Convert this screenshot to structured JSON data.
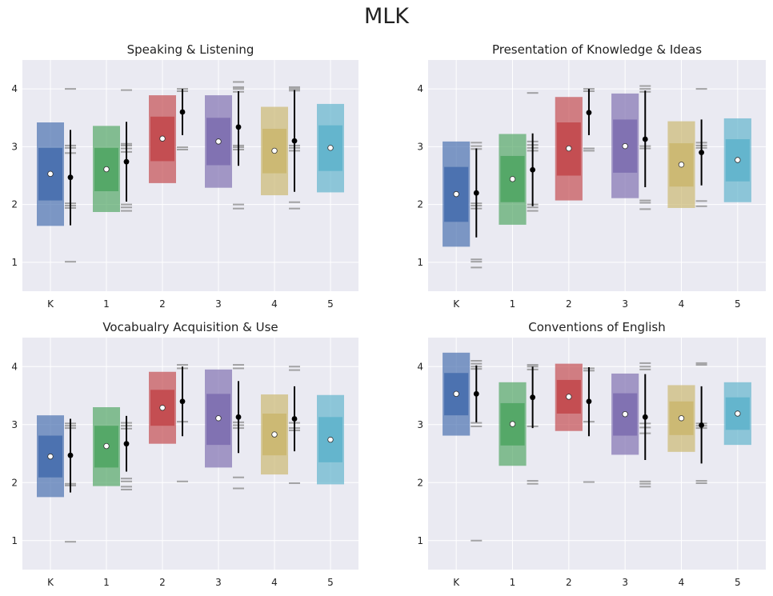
{
  "figure": {
    "title": "MLK"
  },
  "colors": {
    "panel_bg": "#EAEAF2",
    "grid": "#FFFFFF",
    "series": [
      "#4C72B0",
      "#55A868",
      "#C44E52",
      "#8172B2",
      "#CCB974",
      "#64B5CD"
    ]
  },
  "chart_data": [
    {
      "type": "box",
      "title": "Speaking & Listening",
      "xlabel": "",
      "ylabel": "",
      "categories": [
        "K",
        "1",
        "2",
        "3",
        "4",
        "5"
      ],
      "ylim": [
        0.5,
        4.5
      ],
      "yticks": [
        1,
        2,
        3,
        4
      ],
      "grid": true,
      "boxes": [
        {
          "whisker_low": 1.63,
          "q1": 2.07,
          "mean": 2.53,
          "q3": 2.98,
          "whisker_high": 3.42
        },
        {
          "whisker_low": 1.87,
          "q1": 2.23,
          "mean": 2.61,
          "q3": 2.98,
          "whisker_high": 3.36
        },
        {
          "whisker_low": 2.37,
          "q1": 2.75,
          "mean": 3.14,
          "q3": 3.52,
          "whisker_high": 3.89
        },
        {
          "whisker_low": 2.29,
          "q1": 2.68,
          "mean": 3.09,
          "q3": 3.5,
          "whisker_high": 3.89
        },
        {
          "whisker_low": 2.16,
          "q1": 2.54,
          "mean": 2.93,
          "q3": 3.31,
          "whisker_high": 3.69
        },
        {
          "whisker_low": 2.21,
          "q1": 2.58,
          "mean": 2.98,
          "q3": 3.37,
          "whisker_high": 3.74
        }
      ],
      "mlk": [
        {
          "mean": 2.47,
          "low": 1.64,
          "high": 3.29,
          "ticks": [
            1.01,
            1.94,
            1.98,
            2.02,
            2.89,
            2.98,
            3.02,
            4.0
          ]
        },
        {
          "mean": 2.74,
          "low": 2.05,
          "high": 3.43,
          "ticks": [
            1.89,
            1.95,
            2.0,
            2.91,
            2.97,
            3.02,
            3.05,
            3.98
          ]
        },
        {
          "mean": 3.6,
          "low": 3.2,
          "high": 4.0,
          "ticks": [
            2.95,
            2.99,
            3.96,
            4.0
          ]
        },
        {
          "mean": 3.34,
          "low": 2.67,
          "high": 3.96,
          "ticks": [
            1.93,
            2.0,
            2.95,
            2.99,
            3.02,
            3.95,
            4.0,
            4.03,
            4.12
          ]
        },
        {
          "mean": 3.1,
          "low": 2.22,
          "high": 3.98,
          "ticks": [
            1.93,
            2.04,
            2.93,
            2.98,
            3.02,
            3.97,
            4.0,
            4.03
          ]
        },
        {
          "mean": null,
          "low": null,
          "high": null,
          "ticks": []
        }
      ]
    },
    {
      "type": "box",
      "title": "Presentation of Knowledge & Ideas",
      "xlabel": "",
      "ylabel": "",
      "categories": [
        "K",
        "1",
        "2",
        "3",
        "4",
        "5"
      ],
      "ylim": [
        0.5,
        4.5
      ],
      "yticks": [
        1,
        2,
        3,
        4
      ],
      "grid": true,
      "boxes": [
        {
          "whisker_low": 1.27,
          "q1": 1.7,
          "mean": 2.18,
          "q3": 2.65,
          "whisker_high": 3.09
        },
        {
          "whisker_low": 1.65,
          "q1": 2.04,
          "mean": 2.44,
          "q3": 2.84,
          "whisker_high": 3.22
        },
        {
          "whisker_low": 2.07,
          "q1": 2.5,
          "mean": 2.97,
          "q3": 3.42,
          "whisker_high": 3.86
        },
        {
          "whisker_low": 2.11,
          "q1": 2.55,
          "mean": 3.01,
          "q3": 3.47,
          "whisker_high": 3.92
        },
        {
          "whisker_low": 1.94,
          "q1": 2.31,
          "mean": 2.69,
          "q3": 3.06,
          "whisker_high": 3.44
        },
        {
          "whisker_low": 2.04,
          "q1": 2.4,
          "mean": 2.77,
          "q3": 3.13,
          "whisker_high": 3.49
        }
      ],
      "mlk": [
        {
          "mean": 2.2,
          "low": 1.43,
          "high": 2.97,
          "ticks": [
            0.91,
            1.01,
            1.05,
            1.93,
            1.98,
            2.02,
            2.96,
            3.01,
            3.07
          ]
        },
        {
          "mean": 2.6,
          "low": 1.97,
          "high": 3.23,
          "ticks": [
            1.89,
            1.95,
            2.0,
            2.93,
            2.98,
            3.03,
            3.09,
            3.93
          ]
        },
        {
          "mean": 3.59,
          "low": 3.2,
          "high": 4.0,
          "ticks": [
            2.93,
            2.97,
            3.96,
            4.0
          ]
        },
        {
          "mean": 3.13,
          "low": 2.3,
          "high": 3.97,
          "ticks": [
            1.92,
            2.03,
            2.07,
            2.97,
            3.01,
            3.95,
            4.0,
            4.05
          ]
        },
        {
          "mean": 2.9,
          "low": 2.33,
          "high": 3.47,
          "ticks": [
            1.97,
            2.06,
            2.98,
            3.02,
            3.07,
            4.0
          ]
        },
        {
          "mean": null,
          "low": null,
          "high": null,
          "ticks": []
        }
      ]
    },
    {
      "type": "box",
      "title": "Vocabualry Acquisition & Use",
      "xlabel": "",
      "ylabel": "",
      "categories": [
        "K",
        "1",
        "2",
        "3",
        "4",
        "5"
      ],
      "ylim": [
        0.5,
        4.5
      ],
      "yticks": [
        1,
        2,
        3,
        4
      ],
      "grid": true,
      "boxes": [
        {
          "whisker_low": 1.75,
          "q1": 2.09,
          "mean": 2.45,
          "q3": 2.81,
          "whisker_high": 3.16
        },
        {
          "whisker_low": 1.94,
          "q1": 2.26,
          "mean": 2.63,
          "q3": 2.98,
          "whisker_high": 3.3
        },
        {
          "whisker_low": 2.67,
          "q1": 2.98,
          "mean": 3.29,
          "q3": 3.6,
          "whisker_high": 3.91
        },
        {
          "whisker_low": 2.26,
          "q1": 2.65,
          "mean": 3.11,
          "q3": 3.53,
          "whisker_high": 3.95
        },
        {
          "whisker_low": 2.14,
          "q1": 2.47,
          "mean": 2.83,
          "q3": 3.19,
          "whisker_high": 3.52
        },
        {
          "whisker_low": 1.97,
          "q1": 2.35,
          "mean": 2.74,
          "q3": 3.13,
          "whisker_high": 3.51
        }
      ],
      "mlk": [
        {
          "mean": 2.47,
          "low": 1.83,
          "high": 3.1,
          "ticks": [
            0.98,
            1.95,
            1.98,
            2.94,
            2.98,
            3.02
          ]
        },
        {
          "mean": 2.67,
          "low": 2.19,
          "high": 3.15,
          "ticks": [
            1.88,
            1.93,
            2.02,
            2.07,
            2.93,
            2.98,
            3.03
          ]
        },
        {
          "mean": 3.4,
          "low": 2.8,
          "high": 4.0,
          "ticks": [
            2.02,
            3.05,
            3.97,
            4.03
          ]
        },
        {
          "mean": 3.13,
          "low": 2.51,
          "high": 3.75,
          "ticks": [
            1.9,
            2.09,
            2.94,
            2.99,
            3.04,
            3.97,
            4.03
          ]
        },
        {
          "mean": 3.1,
          "low": 2.54,
          "high": 3.66,
          "ticks": [
            1.99,
            2.9,
            2.94,
            3.03,
            3.94,
            4.0
          ]
        },
        {
          "mean": null,
          "low": null,
          "high": null,
          "ticks": []
        }
      ]
    },
    {
      "type": "box",
      "title": "Conventions of English",
      "xlabel": "",
      "ylabel": "",
      "categories": [
        "K",
        "1",
        "2",
        "3",
        "4",
        "5"
      ],
      "ylim": [
        0.5,
        4.5
      ],
      "yticks": [
        1,
        2,
        3,
        4
      ],
      "grid": true,
      "boxes": [
        {
          "whisker_low": 2.81,
          "q1": 3.16,
          "mean": 3.53,
          "q3": 3.89,
          "whisker_high": 4.24
        },
        {
          "whisker_low": 2.29,
          "q1": 2.64,
          "mean": 3.01,
          "q3": 3.37,
          "whisker_high": 3.73
        },
        {
          "whisker_low": 2.89,
          "q1": 3.19,
          "mean": 3.48,
          "q3": 3.77,
          "whisker_high": 4.05
        },
        {
          "whisker_low": 2.48,
          "q1": 2.81,
          "mean": 3.18,
          "q3": 3.54,
          "whisker_high": 3.88
        },
        {
          "whisker_low": 2.53,
          "q1": 2.82,
          "mean": 3.11,
          "q3": 3.4,
          "whisker_high": 3.68
        },
        {
          "whisker_low": 2.65,
          "q1": 2.91,
          "mean": 3.19,
          "q3": 3.47,
          "whisker_high": 3.73
        }
      ],
      "mlk": [
        {
          "mean": 3.53,
          "low": 3.04,
          "high": 4.02,
          "ticks": [
            1.0,
            2.97,
            3.03,
            3.96,
            4.0,
            4.05,
            4.1
          ]
        },
        {
          "mean": 3.47,
          "low": 2.94,
          "high": 4.0,
          "ticks": [
            1.98,
            2.03,
            2.97,
            3.95,
            4.0,
            4.03
          ]
        },
        {
          "mean": 3.4,
          "low": 2.8,
          "high": 3.99,
          "ticks": [
            2.01,
            3.05,
            3.93,
            3.97
          ]
        },
        {
          "mean": 3.13,
          "low": 2.39,
          "high": 3.87,
          "ticks": [
            1.93,
            1.98,
            2.02,
            2.85,
            2.95,
            3.02,
            3.95,
            4.0,
            4.06
          ]
        },
        {
          "mean": 2.99,
          "low": 2.33,
          "high": 3.66,
          "ticks": [
            1.99,
            2.03,
            2.94,
            2.98,
            3.02,
            4.03,
            4.06
          ]
        },
        {
          "mean": null,
          "low": null,
          "high": null,
          "ticks": []
        }
      ]
    }
  ]
}
